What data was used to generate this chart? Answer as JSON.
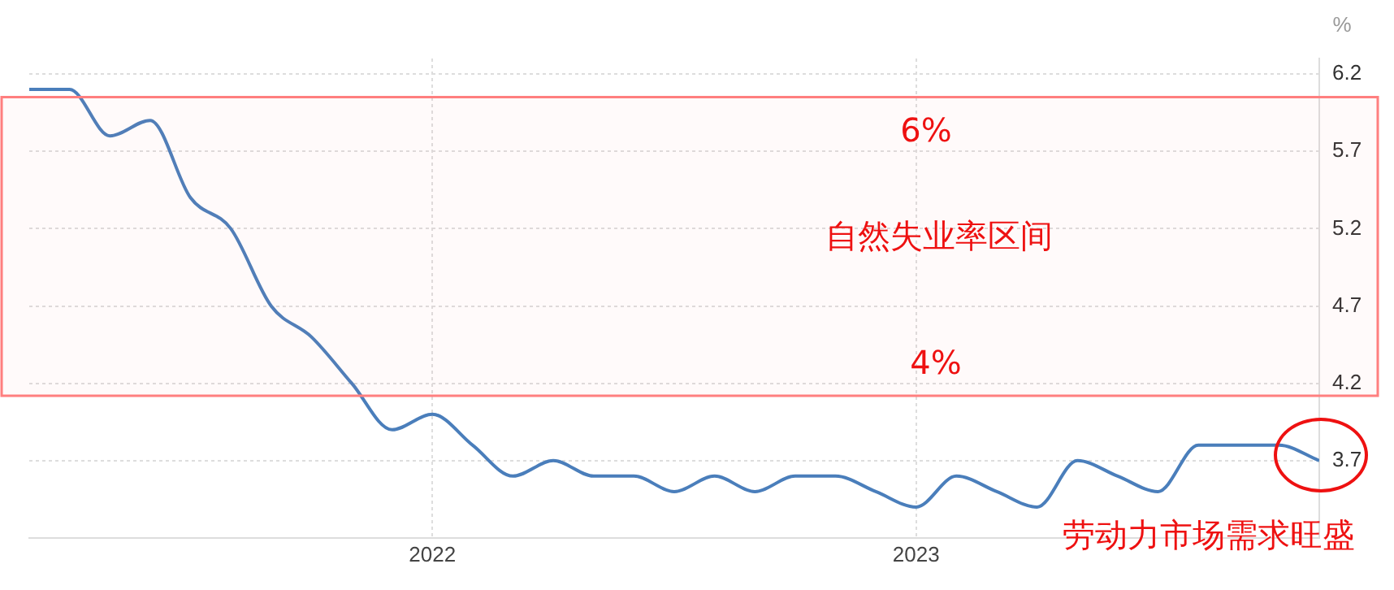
{
  "chart_data": {
    "type": "line",
    "ylabel": "%",
    "x": [
      "2021-03",
      "2021-04",
      "2021-05",
      "2021-06",
      "2021-07",
      "2021-08",
      "2021-09",
      "2021-10",
      "2021-11",
      "2021-12",
      "2022-01",
      "2022-02",
      "2022-03",
      "2022-04",
      "2022-05",
      "2022-06",
      "2022-07",
      "2022-08",
      "2022-09",
      "2022-10",
      "2022-11",
      "2022-12",
      "2023-01",
      "2023-02",
      "2023-03",
      "2023-04",
      "2023-05",
      "2023-06",
      "2023-07",
      "2023-08",
      "2023-09",
      "2023-10",
      "2023-11"
    ],
    "series": [
      {
        "color": "#4a7ebb",
        "values": [
          6.1,
          6.1,
          5.8,
          5.9,
          5.4,
          5.2,
          4.7,
          4.5,
          4.2,
          3.9,
          4.0,
          3.8,
          3.6,
          3.7,
          3.6,
          3.6,
          3.5,
          3.6,
          3.5,
          3.6,
          3.6,
          3.5,
          3.4,
          3.6,
          3.5,
          3.4,
          3.7,
          3.6,
          3.5,
          3.8,
          3.8,
          3.8,
          3.7
        ]
      }
    ],
    "xlim": [
      "2021-03",
      "2023-11"
    ],
    "xticks": [
      "2022",
      "2023"
    ],
    "ylim": [
      3.2,
      6.3
    ],
    "yticks": [
      3.7,
      4.2,
      4.7,
      5.2,
      5.7,
      6.2
    ],
    "bands": [
      {
        "axis": "y",
        "from": 4.12,
        "to": 6.05,
        "label": "自然失业率区间",
        "color": "#ff7f7f"
      }
    ],
    "annotations": [
      "6%",
      "4%",
      "劳动力市场需求旺盛"
    ],
    "grid": true,
    "legend": false,
    "marker": "none",
    "line_style": "solid"
  }
}
